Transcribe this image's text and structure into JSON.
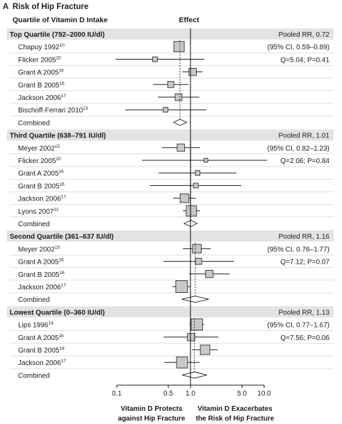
{
  "panel": {
    "letter": "A",
    "title": "Risk of Hip Fracture"
  },
  "columns": {
    "left": "Quartile of Vitamin D Intake",
    "mid": "Effect"
  },
  "chart_data": {
    "type": "forest",
    "x_scale": "log",
    "xlim": [
      0.1,
      10.0
    ],
    "x_ticks": [
      {
        "value": 0.1,
        "label": "0.1"
      },
      {
        "value": 0.5,
        "label": "0.5"
      },
      {
        "value": 1.0,
        "label": "1.0"
      },
      {
        "value": 5.0,
        "label": "5.0"
      },
      {
        "value": 10.0,
        "label": "10.0"
      }
    ],
    "reference_value": 1.0,
    "xlabel_left": [
      "Vitamin D Protects",
      "against Hip Fracture"
    ],
    "xlabel_right": [
      "Vitamin D Exacerbates",
      "the Risk of Hip Fracture"
    ],
    "groups": [
      {
        "name": "Top Quartile (792–2000 IU/dl)",
        "pooled_label": "Pooled RR, 0.72",
        "stats": [
          "(95% CI, 0.59–0.89)",
          "Q=5.04; P=0.41"
        ],
        "pooled": {
          "rr": 0.72,
          "lo": 0.59,
          "hi": 0.89
        },
        "studies": [
          {
            "name": "Chapuy 1992",
            "ref": "10",
            "rr": 0.7,
            "lo": 0.61,
            "hi": 0.81,
            "weight": 14
          },
          {
            "name": "Flicker 2005",
            "ref": "20",
            "rr": 0.33,
            "lo": 0.07,
            "hi": 1.55,
            "weight": 3
          },
          {
            "name": "Grant A 2005",
            "ref": "16",
            "rr": 1.07,
            "lo": 0.78,
            "hi": 1.46,
            "weight": 7
          },
          {
            "name": "Grant B 2005",
            "ref": "16",
            "rr": 0.54,
            "lo": 0.31,
            "hi": 0.94,
            "weight": 5
          },
          {
            "name": "Jackson 2006",
            "ref": "17",
            "rr": 0.69,
            "lo": 0.36,
            "hi": 1.32,
            "weight": 6
          },
          {
            "name": "Bischoff-Ferrari 2010",
            "ref": "13",
            "rr": 0.46,
            "lo": 0.13,
            "hi": 1.64,
            "weight": 3
          }
        ]
      },
      {
        "name": "Third Quartile (638–791 IU/dl)",
        "pooled_label": "Pooled RR, 1.01",
        "stats": [
          "(95% CI, 0.82–1.23)",
          "Q=2.06; P=0.84"
        ],
        "pooled": {
          "rr": 1.01,
          "lo": 0.82,
          "hi": 1.23
        },
        "studies": [
          {
            "name": "Meyer 2002",
            "ref": "15",
            "rr": 0.74,
            "lo": 0.41,
            "hi": 1.35,
            "weight": 7
          },
          {
            "name": "Flicker 2005",
            "ref": "20",
            "rr": 1.62,
            "lo": 0.22,
            "hi": 11.0,
            "weight": 2
          },
          {
            "name": "Grant A 2005",
            "ref": "16",
            "rr": 1.25,
            "lo": 0.37,
            "hi": 4.2,
            "weight": 3
          },
          {
            "name": "Grant B 2005",
            "ref": "16",
            "rr": 1.18,
            "lo": 0.28,
            "hi": 4.9,
            "weight": 3
          },
          {
            "name": "Jackson 2006",
            "ref": "17",
            "rr": 0.83,
            "lo": 0.58,
            "hi": 1.19,
            "weight": 10
          },
          {
            "name": "Lyons 2007",
            "ref": "21",
            "rr": 1.03,
            "lo": 0.79,
            "hi": 1.35,
            "weight": 14
          }
        ]
      },
      {
        "name": "Second Quartile (361–637 IU/dl)",
        "pooled_label": "Pooled RR, 1.16",
        "stats": [
          "(95% CI, 0.76–1.77)",
          "Q=7.12; P=0.07"
        ],
        "pooled": {
          "rr": 1.16,
          "lo": 0.76,
          "hi": 1.77
        },
        "studies": [
          {
            "name": "Meyer 2002",
            "ref": "15",
            "rr": 1.22,
            "lo": 0.79,
            "hi": 1.88,
            "weight": 10
          },
          {
            "name": "Grant A 2005",
            "ref": "16",
            "rr": 1.29,
            "lo": 0.43,
            "hi": 3.9,
            "weight": 5
          },
          {
            "name": "Grant B 2005",
            "ref": "16",
            "rr": 1.8,
            "lo": 0.96,
            "hi": 3.4,
            "weight": 7
          },
          {
            "name": "Jackson 2006",
            "ref": "17",
            "rr": 0.76,
            "lo": 0.57,
            "hi": 1.01,
            "weight": 18
          }
        ]
      },
      {
        "name": "Lowest Quartile (0–360 IU/dl)",
        "pooled_label": "Pooled RR, 1.13",
        "stats": [
          "(95% CI, 0.77–1.67)",
          "Q=7.56; P=0.06"
        ],
        "pooled": {
          "rr": 1.13,
          "lo": 0.77,
          "hi": 1.67
        },
        "studies": [
          {
            "name": "Lips 1996",
            "ref": "14",
            "rr": 1.22,
            "lo": 0.97,
            "hi": 1.53,
            "weight": 17
          },
          {
            "name": "Grant A 2005",
            "ref": "16",
            "rr": 1.02,
            "lo": 0.43,
            "hi": 2.4,
            "weight": 7
          },
          {
            "name": "Grant B 2005",
            "ref": "16",
            "rr": 1.58,
            "lo": 1.05,
            "hi": 2.35,
            "weight": 12
          },
          {
            "name": "Jackson 2006",
            "ref": "17",
            "rr": 0.77,
            "lo": 0.44,
            "hi": 1.33,
            "weight": 16
          }
        ]
      }
    ],
    "combined_label": "Combined"
  }
}
